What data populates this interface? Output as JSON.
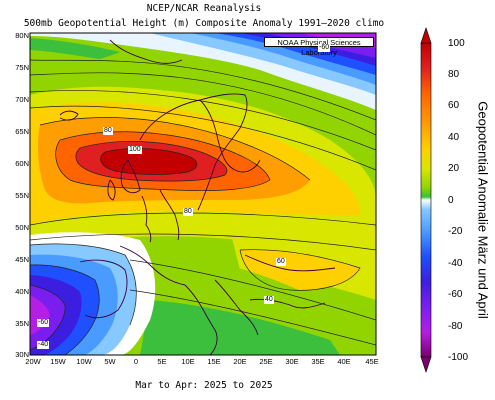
{
  "title_line1": "NCEP/NCAR Reanalysis",
  "title_line2": "500mb Geopotential Height (m) Composite Anomaly 1991–2020 climo",
  "subtitle": "Mar to Apr: 2025 to 2025",
  "credit": "NOAA Physical Sciences Laboratory",
  "lat_ticks": [
    "80N",
    "75N",
    "70N",
    "65N",
    "60N",
    "55N",
    "50N",
    "45N",
    "40N",
    "35N",
    "30N"
  ],
  "lon_ticks": [
    "20W",
    "15W",
    "10W",
    "5W",
    "0",
    "5E",
    "10E",
    "15E",
    "20E",
    "25E",
    "30E",
    "35E",
    "40E",
    "45E"
  ],
  "colorbar": {
    "labels": [
      "100",
      "80",
      "60",
      "40",
      "20",
      "0",
      "-20",
      "-40",
      "-60",
      "-80",
      "-100"
    ],
    "colors": [
      "#c20000",
      "#e02020",
      "#ff6400",
      "#ff9e00",
      "#ffd000",
      "#d8e600",
      "#92d400",
      "#3cbf3c",
      "#ffffff",
      "#86c8ff",
      "#4a9bff",
      "#1e50ff",
      "#3c1ee0",
      "#7a1ef0",
      "#b41ee6",
      "#7a006e"
    ],
    "title": "Geopotential Anomalie März und April"
  },
  "contour_labels": [
    {
      "text": "-60"
    },
    {
      "text": "80"
    },
    {
      "text": "100"
    },
    {
      "text": "80"
    },
    {
      "text": "60"
    },
    {
      "text": "40"
    },
    {
      "text": "-40"
    },
    {
      "text": "-60"
    }
  ]
}
